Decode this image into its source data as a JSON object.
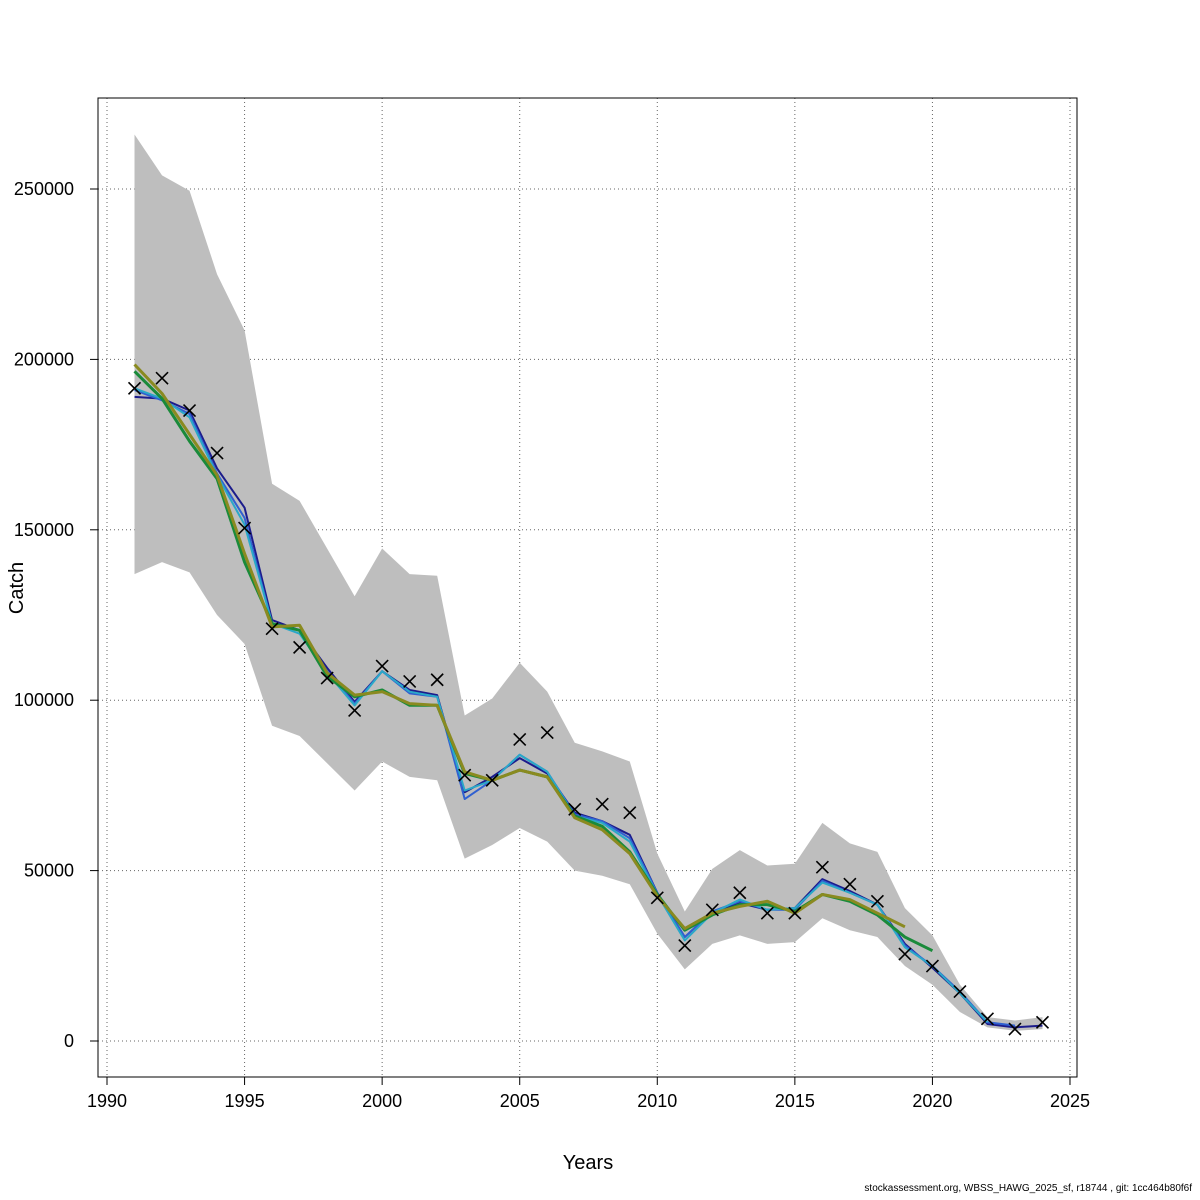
{
  "chart_data": {
    "type": "line",
    "title": "",
    "xlabel": "Years",
    "ylabel": "Catch",
    "xlim": [
      1990,
      2025
    ],
    "ylim": [
      -10000,
      277000
    ],
    "x_ticks": [
      1990,
      1995,
      2000,
      2005,
      2010,
      2015,
      2020,
      2025
    ],
    "y_ticks": [
      0,
      50000,
      100000,
      150000,
      200000,
      250000
    ],
    "x_grid": [
      1990,
      1995,
      2000,
      2005,
      2010,
      2015,
      2020,
      2025
    ],
    "y_grid": [
      0,
      50000,
      100000,
      150000,
      200000,
      250000
    ],
    "grid": true,
    "band_color": "#bebebe",
    "band": {
      "x": [
        1991,
        1992,
        1993,
        1994,
        1995,
        1996,
        1997,
        1998,
        1999,
        2000,
        2001,
        2002,
        2003,
        2004,
        2005,
        2006,
        2007,
        2008,
        2009,
        2010,
        2011,
        2012,
        2013,
        2014,
        2015,
        2016,
        2017,
        2018,
        2019,
        2020,
        2021,
        2022,
        2023,
        2024
      ],
      "upper": [
        266000,
        254000,
        249500,
        225000,
        208500,
        163500,
        158500,
        144500,
        130500,
        144500,
        137000,
        136500,
        95500,
        100500,
        111000,
        102500,
        87500,
        85000,
        82000,
        55000,
        38000,
        50500,
        56000,
        51500,
        52000,
        64000,
        58000,
        55500,
        39000,
        31000,
        16500,
        7000,
        6000,
        7000
      ],
      "lower": [
        137000,
        140500,
        137500,
        125000,
        116500,
        92500,
        89500,
        81500,
        73500,
        82000,
        77500,
        76500,
        53500,
        57500,
        62500,
        58500,
        50000,
        48500,
        46000,
        31500,
        21000,
        28500,
        31000,
        28500,
        29000,
        36000,
        32500,
        30500,
        22000,
        16500,
        8500,
        4000,
        3000,
        3500
      ]
    },
    "observed": {
      "marker": "x",
      "x": [
        1991,
        1992,
        1993,
        1994,
        1995,
        1996,
        1997,
        1998,
        1999,
        2000,
        2001,
        2002,
        2003,
        2004,
        2005,
        2006,
        2007,
        2008,
        2009,
        2010,
        2011,
        2012,
        2013,
        2014,
        2015,
        2016,
        2017,
        2018,
        2019,
        2020,
        2021,
        2022,
        2023,
        2024
      ],
      "y": [
        191500,
        194500,
        185000,
        172500,
        150500,
        121000,
        115500,
        106500,
        97000,
        110000,
        105500,
        106000,
        78000,
        76500,
        88500,
        90500,
        68000,
        69500,
        67000,
        42000,
        28000,
        38500,
        43500,
        37500,
        37500,
        51000,
        46000,
        41000,
        25500,
        22000,
        14500,
        6500,
        3500,
        5500
      ]
    },
    "series": [
      {
        "color": "#1c1c8c",
        "x": [
          1991,
          1992,
          1993,
          1994,
          1995,
          1996,
          1997,
          1998,
          1999,
          2000,
          2001,
          2002,
          2003,
          2004,
          2005,
          2006,
          2007,
          2008,
          2009,
          2010,
          2011,
          2012,
          2013,
          2014,
          2015,
          2016,
          2017,
          2018,
          2019,
          2020,
          2021,
          2022,
          2023,
          2024
        ],
        "y": [
          189000,
          188500,
          185000,
          168000,
          156500,
          123500,
          120500,
          109500,
          99500,
          108500,
          103000,
          101500,
          73000,
          77500,
          83000,
          78500,
          67000,
          64500,
          60500,
          43500,
          30500,
          38000,
          40500,
          38500,
          39000,
          47500,
          44000,
          40000,
          28500,
          21500,
          14000,
          5000,
          4000,
          4500
        ]
      },
      {
        "color": "#3060d0",
        "x": [
          1991,
          1992,
          1993,
          1994,
          1995,
          1996,
          1997,
          1998,
          1999,
          2000,
          2001,
          2002,
          2003,
          2004,
          2005,
          2006,
          2007,
          2008,
          2009,
          2010,
          2011,
          2012,
          2013,
          2014,
          2015,
          2016,
          2017,
          2018,
          2019,
          2020,
          2021,
          2022,
          2023
        ],
        "y": [
          191000,
          188000,
          184000,
          166500,
          153500,
          122500,
          120500,
          108500,
          99000,
          108500,
          102000,
          101000,
          71000,
          76500,
          84000,
          79000,
          66500,
          64500,
          59500,
          43500,
          30500,
          38000,
          41000,
          38500,
          38500,
          47000,
          43500,
          40000,
          28000,
          22000,
          14500,
          5500,
          4500
        ]
      },
      {
        "color": "#2aa8c8",
        "x": [
          1991,
          1992,
          1993,
          1994,
          1995,
          1996,
          1997,
          1998,
          1999,
          2000,
          2001,
          2002,
          2003,
          2004,
          2005,
          2006,
          2007,
          2008,
          2009,
          2010,
          2011,
          2012,
          2013,
          2014,
          2015,
          2016,
          2017,
          2018,
          2019,
          2020,
          2021,
          2022
        ],
        "y": [
          191500,
          188500,
          183000,
          166000,
          151500,
          122500,
          119500,
          108000,
          98500,
          108500,
          102500,
          101000,
          73500,
          76500,
          84000,
          79000,
          66000,
          64000,
          58500,
          43000,
          29500,
          37500,
          41500,
          38500,
          39000,
          46500,
          43500,
          40000,
          27500,
          22000,
          14000,
          5500
        ]
      },
      {
        "color": "#1a8a3a",
        "x": [
          1991,
          1992,
          1993,
          1994,
          1995,
          1996,
          1997,
          1998,
          1999,
          2000,
          2001,
          2002,
          2003,
          2004,
          2005,
          2006,
          2007,
          2008,
          2009,
          2010,
          2011,
          2012,
          2013,
          2014,
          2015,
          2016,
          2017,
          2018,
          2019,
          2020
        ],
        "y": [
          196500,
          188500,
          176000,
          165000,
          140500,
          122500,
          120500,
          107000,
          101000,
          103000,
          98500,
          98500,
          78500,
          76500,
          79500,
          77500,
          66000,
          63000,
          55500,
          43000,
          32500,
          37000,
          40000,
          40000,
          38000,
          43000,
          41000,
          37000,
          30500,
          26500
        ]
      },
      {
        "color": "#8a8a20",
        "x": [
          1991,
          1992,
          1993,
          1994,
          1995,
          1996,
          1997,
          1998,
          1999,
          2000,
          2001,
          2002,
          2003,
          2004,
          2005,
          2006,
          2007,
          2008,
          2009,
          2010,
          2011,
          2012,
          2013,
          2014,
          2015,
          2016,
          2017,
          2018,
          2019
        ],
        "y": [
          198500,
          190000,
          178000,
          166000,
          143000,
          121500,
          122000,
          108000,
          101500,
          102500,
          99000,
          98500,
          79000,
          76500,
          79500,
          77500,
          65500,
          62000,
          55000,
          42500,
          33000,
          37500,
          39500,
          41000,
          37500,
          43000,
          41500,
          37500,
          33500
        ]
      }
    ]
  },
  "footer": "stockassessment.org, WBSS_HAWG_2025_sf, r18744 , git: 1cc464b80f6f"
}
